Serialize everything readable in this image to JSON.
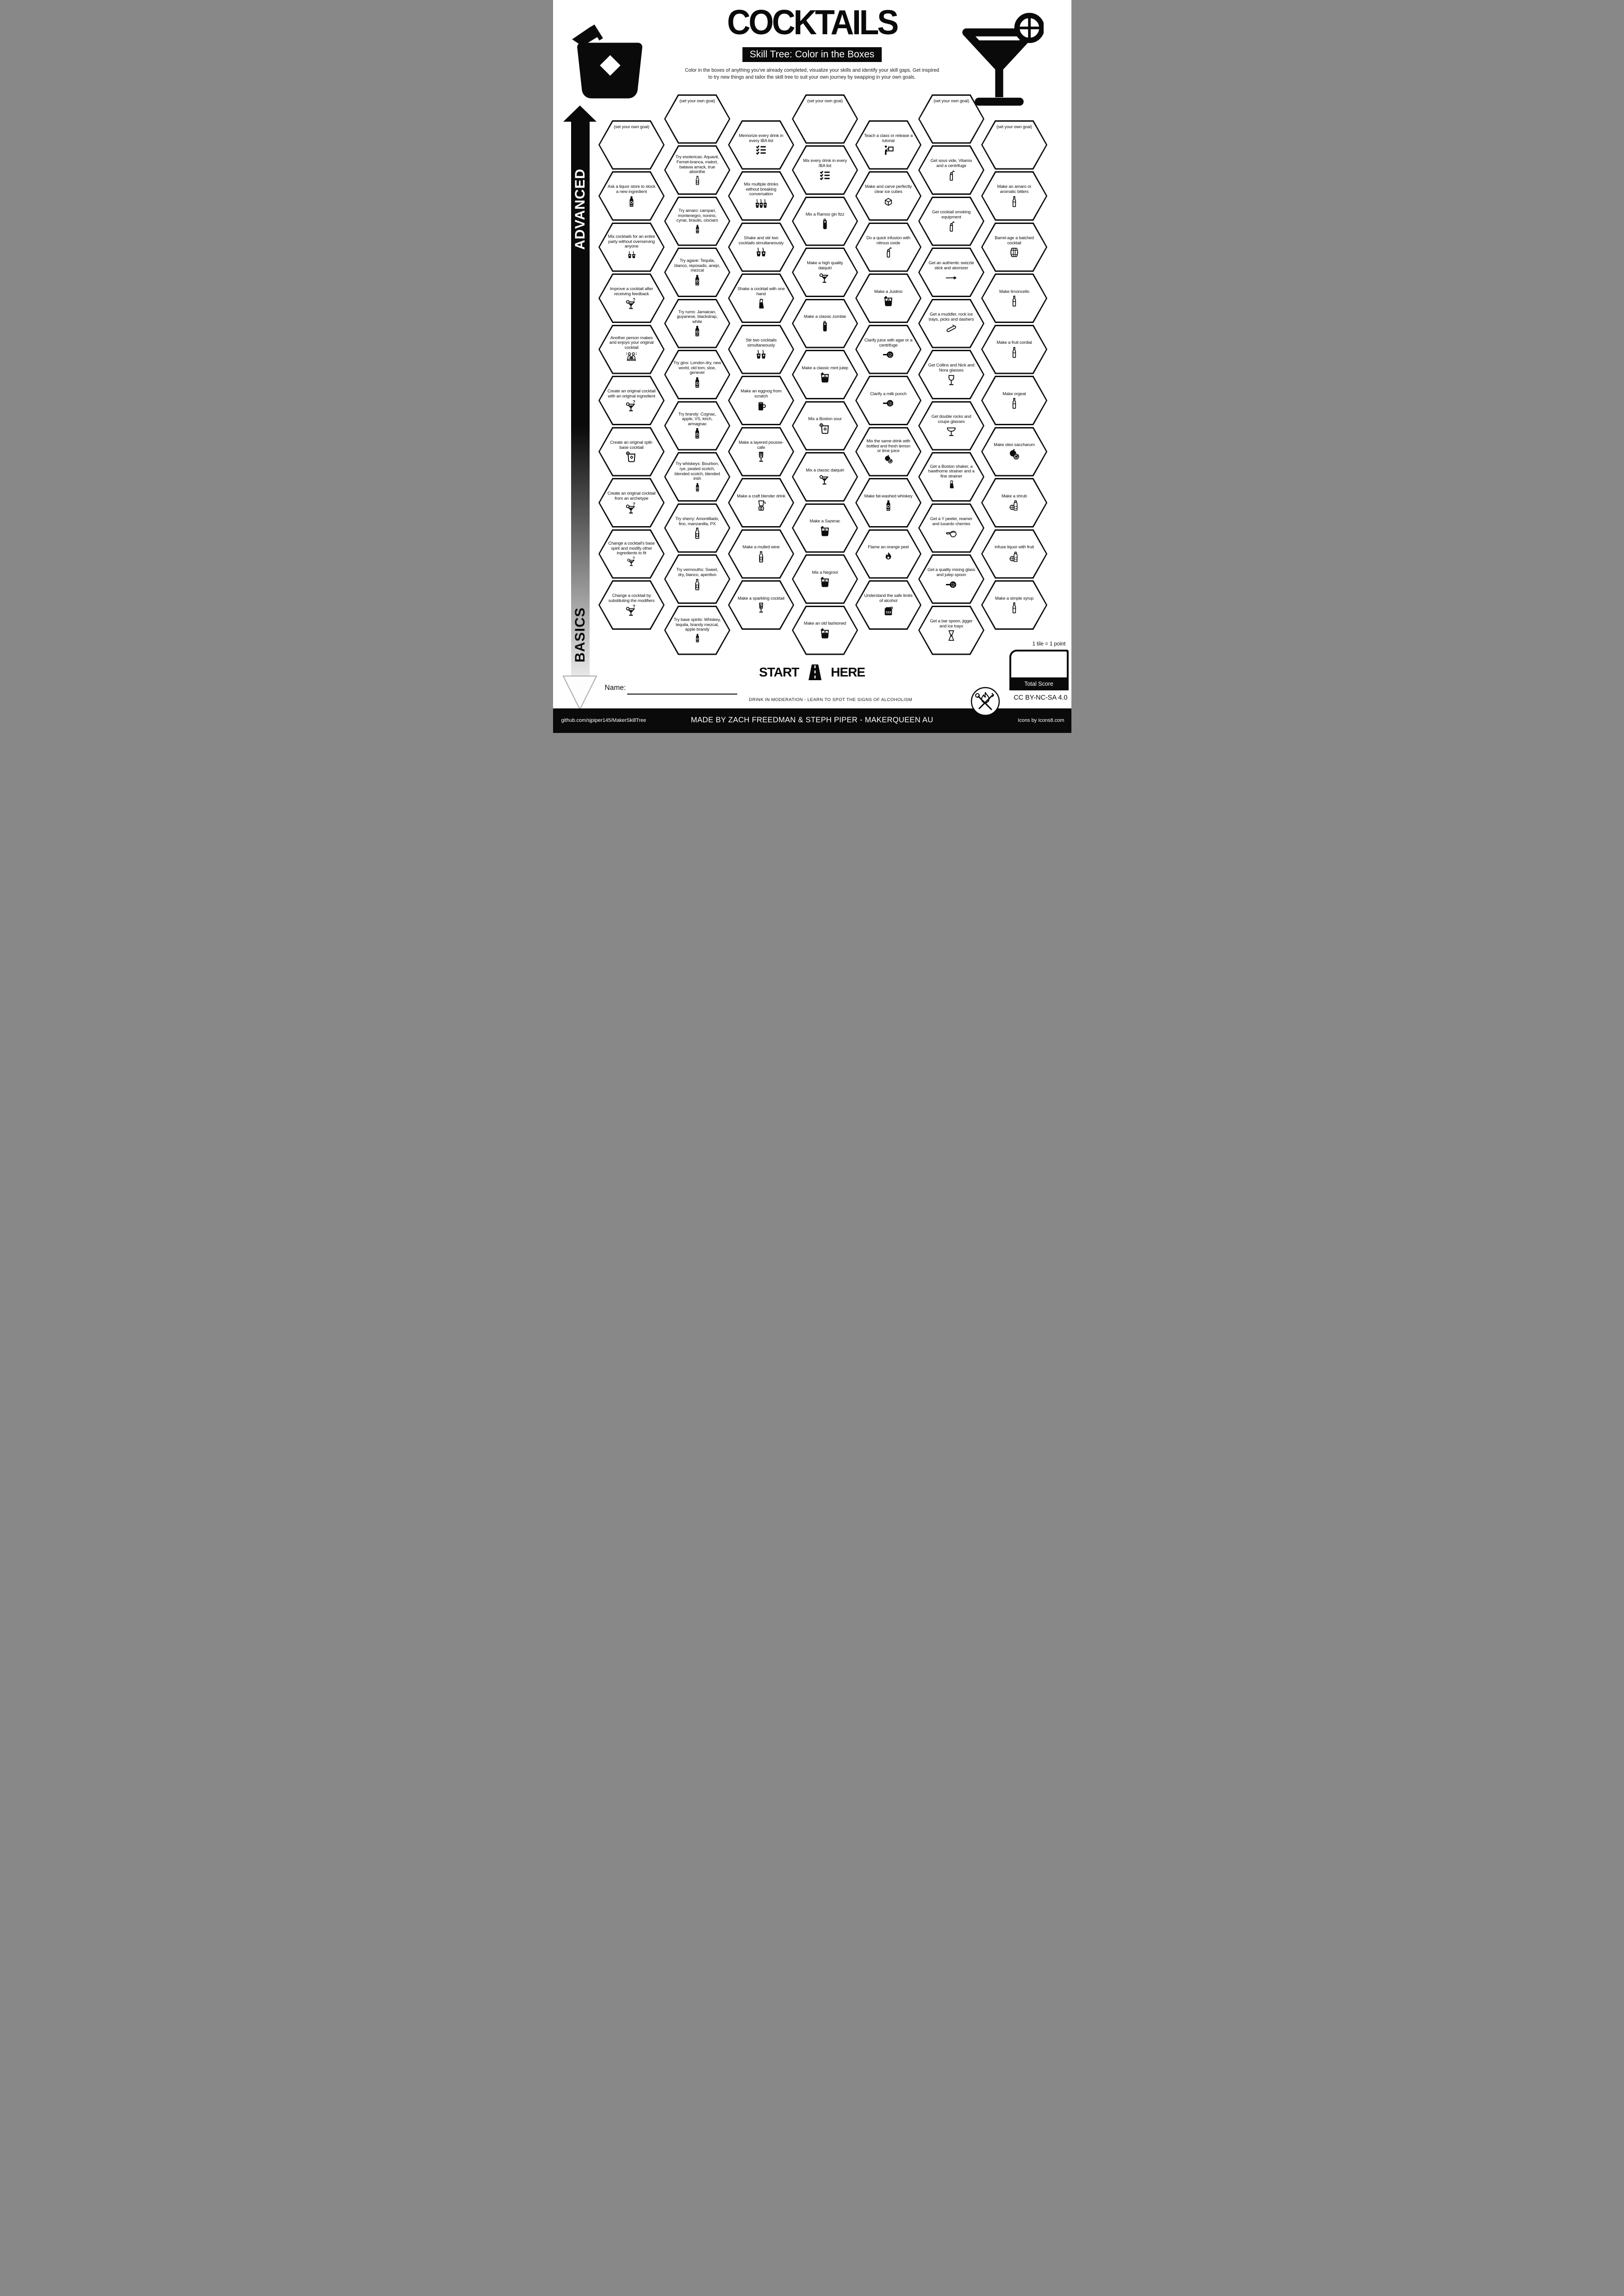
{
  "header": {
    "title": "COCKTAILS",
    "subtitle": "Skill Tree: Color in the Boxes",
    "description_line1": "Color in the boxes of anything you've already completed, visualize your skills and identify your skill gaps.  Get inspired",
    "description_line2": "to try new things and tailor the skill tree to suit your own journey by swapping in your own goals."
  },
  "axis": {
    "top_label": "ADVANCED",
    "bottom_label": "BASICS"
  },
  "start": {
    "start_label": "START",
    "here_label": "HERE"
  },
  "score": {
    "tile_note": "1 tile = 1 point",
    "total_label": "Total Score"
  },
  "name_field": {
    "label": "Name:"
  },
  "footer": {
    "moderation_note": "DRINK IN MODERATION - LEARN TO SPOT THE SIGNS OF ALCOHOLISM",
    "license": "CC BY-NC-SA 4.0",
    "repo": "github.com/sjpiper145/MakerSkillTree",
    "credit": "MADE BY ZACH FREEDMAN & STEPH PIPER  -  MAKERQUEEN AU",
    "icons_credit": "Icons by Icons8.com"
  },
  "hex_grid": {
    "columns": 7,
    "goal_placeholder": "(set your own goal)",
    "hexes": [
      {
        "col": 1,
        "row": 0,
        "label": "(set your own goal)",
        "icon": "",
        "goal": true
      },
      {
        "col": 1,
        "row": 1,
        "label": "Ask a liquor store to stock a new ingredient",
        "icon": "bottle"
      },
      {
        "col": 1,
        "row": 2,
        "label": "Mix cocktails for an entire party without overserving anyone",
        "icon": "two-glasses"
      },
      {
        "col": 1,
        "row": 3,
        "label": "Improve a cocktail after receiving feedback",
        "icon": "martini-question"
      },
      {
        "col": 1,
        "row": 4,
        "label": "Another person makes and enjoys your original cocktail",
        "icon": "people"
      },
      {
        "col": 1,
        "row": 5,
        "label": "Create an original cocktail with an original ingredient",
        "icon": "martini-question"
      },
      {
        "col": 1,
        "row": 6,
        "label": "Create an original split-base cocktail",
        "icon": "rocks-citrus"
      },
      {
        "col": 1,
        "row": 7,
        "label": "Create an original cocktail from an archetype",
        "icon": "martini-question"
      },
      {
        "col": 1,
        "row": 8,
        "label": "Change a cocktail's base spirit and modify other ingredients to fit",
        "icon": "martini-question"
      },
      {
        "col": 1,
        "row": 9,
        "label": "Change a cocktail by substituting the modifiers",
        "icon": "martini-question"
      },
      {
        "col": 2,
        "row": 0,
        "label": "(set your own goal)",
        "icon": "",
        "goal": true
      },
      {
        "col": 2,
        "row": 1,
        "label": "Try esotericas: Aquavit, Fernet-branca, malort, batavia arrack, true absinthe",
        "icon": "wine-bottle"
      },
      {
        "col": 2,
        "row": 2,
        "label": "Try amaro: campari, montenegro, nonino, cynar, braulio, ciociaro",
        "icon": "bottle"
      },
      {
        "col": 2,
        "row": 3,
        "label": "Try agave: Tequila, blanco, reposado, anejo, mezcal",
        "icon": "bottle"
      },
      {
        "col": 2,
        "row": 4,
        "label": "Try rums: Jamaican, guyanese, blackstrap, white",
        "icon": "bottle"
      },
      {
        "col": 2,
        "row": 5,
        "label": "Try gins: London dry, new world, old tom, sloe, genever",
        "icon": "bottle"
      },
      {
        "col": 2,
        "row": 6,
        "label": "Try brandy: Cognac, apple, VS, kirch, armagnac",
        "icon": "bottle"
      },
      {
        "col": 2,
        "row": 7,
        "label": "Try whiskeys: Bourbon, rye, peated scotch, blended scotch, blended irish",
        "icon": "bottle"
      },
      {
        "col": 2,
        "row": 8,
        "label": "Try sherry: Amontillado, fino, manzanilla, PX",
        "icon": "wine-bottle"
      },
      {
        "col": 2,
        "row": 9,
        "label": "Try vermouths: Sweet, dry, bianco, aperitivo",
        "icon": "wine-bottle"
      },
      {
        "col": 2,
        "row": 10,
        "label": "Try base spirits: Whiskey, tequila, brandy mezcal,  apple brandy",
        "icon": "bottle"
      },
      {
        "col": 3,
        "row": 0,
        "label": "Memorize every drink in every IBA list",
        "icon": "checklist"
      },
      {
        "col": 3,
        "row": 1,
        "label": "Mix multiple drinks without breaking conversation",
        "icon": "three-glasses"
      },
      {
        "col": 3,
        "row": 2,
        "label": "Shake and stir two cocktails simultaneously",
        "icon": "two-glasses"
      },
      {
        "col": 3,
        "row": 3,
        "label": "Shake a cocktail with one hand",
        "icon": "shaker"
      },
      {
        "col": 3,
        "row": 4,
        "label": "Stir two cocktails simultaneously",
        "icon": "two-glasses"
      },
      {
        "col": 3,
        "row": 5,
        "label": "Make an eggnog from scratch",
        "icon": "mug"
      },
      {
        "col": 3,
        "row": 6,
        "label": "Make a layered pousse-cafe",
        "icon": "pousse-cafe"
      },
      {
        "col": 3,
        "row": 7,
        "label": "Make a craft blender drink",
        "icon": "blender"
      },
      {
        "col": 3,
        "row": 8,
        "label": "Make a mulled wine",
        "icon": "wine-bottle"
      },
      {
        "col": 3,
        "row": 9,
        "label": "Make a sparkling cocktail",
        "icon": "sparkling-flute"
      },
      {
        "col": 4,
        "row": 0,
        "label": "(set your own goal)",
        "icon": "",
        "goal": true
      },
      {
        "col": 4,
        "row": 1,
        "label": "Mix every drink in every IBA list",
        "icon": "checklist"
      },
      {
        "col": 4,
        "row": 2,
        "label": "Mix a Ramos gin fizz",
        "icon": "tall-glass"
      },
      {
        "col": 4,
        "row": 3,
        "label": "Make a high quality daiquiri",
        "icon": "martini-citrus"
      },
      {
        "col": 4,
        "row": 4,
        "label": "Make a classic zombie",
        "icon": "tall-glass"
      },
      {
        "col": 4,
        "row": 5,
        "label": "Make a classic mint julep",
        "icon": "rocks-dark"
      },
      {
        "col": 4,
        "row": 6,
        "label": "Mix a Boston sour",
        "icon": "rocks-citrus"
      },
      {
        "col": 4,
        "row": 7,
        "label": "Mix a classic daiquiri",
        "icon": "martini-citrus"
      },
      {
        "col": 4,
        "row": 8,
        "label": "Make a Sazerac",
        "icon": "rocks-dark"
      },
      {
        "col": 4,
        "row": 9,
        "label": "Mix a Negroni",
        "icon": "rocks-dark"
      },
      {
        "col": 4,
        "row": 10,
        "label": "Make an old fashioned",
        "icon": "rocks-dark"
      },
      {
        "col": 5,
        "row": 0,
        "label": "Teach a class or release a tutorial",
        "icon": "teacher"
      },
      {
        "col": 5,
        "row": 1,
        "label": "Make and carve perfectly clear ice cubes",
        "icon": "ice-cube"
      },
      {
        "col": 5,
        "row": 2,
        "label": "Do a quick infusion with nitrous oxide",
        "icon": "siphon"
      },
      {
        "col": 5,
        "row": 3,
        "label": "Make a Justino",
        "icon": "rocks-dark"
      },
      {
        "col": 5,
        "row": 4,
        "label": "Clarify juice with agar or a centrifuge",
        "icon": "strainer"
      },
      {
        "col": 5,
        "row": 5,
        "label": "Clarify a milk punch",
        "icon": "strainer"
      },
      {
        "col": 5,
        "row": 6,
        "label": "Mix the same drink with bottled and fresh lemon or lime juice",
        "icon": "citrus"
      },
      {
        "col": 5,
        "row": 7,
        "label": "Make fat-washed whiskey",
        "icon": "bottle"
      },
      {
        "col": 5,
        "row": 8,
        "label": "Flame an orange peel",
        "icon": "fire"
      },
      {
        "col": 5,
        "row": 9,
        "label": "Understand the safe limits of alcohol",
        "icon": "jug"
      },
      {
        "col": 6,
        "row": 0,
        "label": "(set your own goal)",
        "icon": "",
        "goal": true
      },
      {
        "col": 6,
        "row": 1,
        "label": "Get sous vide, Vitamix and a centrifuge",
        "icon": "siphon"
      },
      {
        "col": 6,
        "row": 2,
        "label": "Get cocktail smoking equipment",
        "icon": "siphon"
      },
      {
        "col": 6,
        "row": 3,
        "label": "Get an authentic swizzle stick and atomizer",
        "icon": "swizzle"
      },
      {
        "col": 6,
        "row": 4,
        "label": "Get a muddler, rock ice trays, picks and dashers",
        "icon": "muddler"
      },
      {
        "col": 6,
        "row": 5,
        "label": "Get  Collins and Nick and Nora glasses",
        "icon": "stem-glass"
      },
      {
        "col": 6,
        "row": 6,
        "label": "Get double rocks and coupe glasses",
        "icon": "coupe"
      },
      {
        "col": 6,
        "row": 7,
        "label": "Get a Boston shaker, a hawthorne strainer and a fine strainer",
        "icon": "shaker"
      },
      {
        "col": 6,
        "row": 8,
        "label": "Get a Y peeler, reamer and luxardo cherries",
        "icon": "peeler"
      },
      {
        "col": 6,
        "row": 9,
        "label": "Get a quality mixing glass and julep spoon",
        "icon": "strainer"
      },
      {
        "col": 6,
        "row": 10,
        "label": "Get a bar spoon, jigger and ice trays",
        "icon": "jigger"
      },
      {
        "col": 7,
        "row": 0,
        "label": "(set your own goal)",
        "icon": "",
        "goal": true
      },
      {
        "col": 7,
        "row": 1,
        "label": "Make an amaro or aromatic bitters",
        "icon": "slim-bottle"
      },
      {
        "col": 7,
        "row": 2,
        "label": "Barrel-age a batched cocktail",
        "icon": "barrel"
      },
      {
        "col": 7,
        "row": 3,
        "label": "Make limoncello",
        "icon": "slim-bottle"
      },
      {
        "col": 7,
        "row": 4,
        "label": "Make a fruit cordial",
        "icon": "slim-bottle"
      },
      {
        "col": 7,
        "row": 5,
        "label": "Make orgeat",
        "icon": "slim-bottle"
      },
      {
        "col": 7,
        "row": 6,
        "label": "Make oleo saccharum",
        "icon": "citrus"
      },
      {
        "col": 7,
        "row": 7,
        "label": "Make a shrub",
        "icon": "fruit-bottle"
      },
      {
        "col": 7,
        "row": 8,
        "label": "Infuse liquor with fruit",
        "icon": "fruit-bottle"
      },
      {
        "col": 7,
        "row": 9,
        "label": "Make a simple syrup",
        "icon": "slim-bottle"
      }
    ]
  }
}
